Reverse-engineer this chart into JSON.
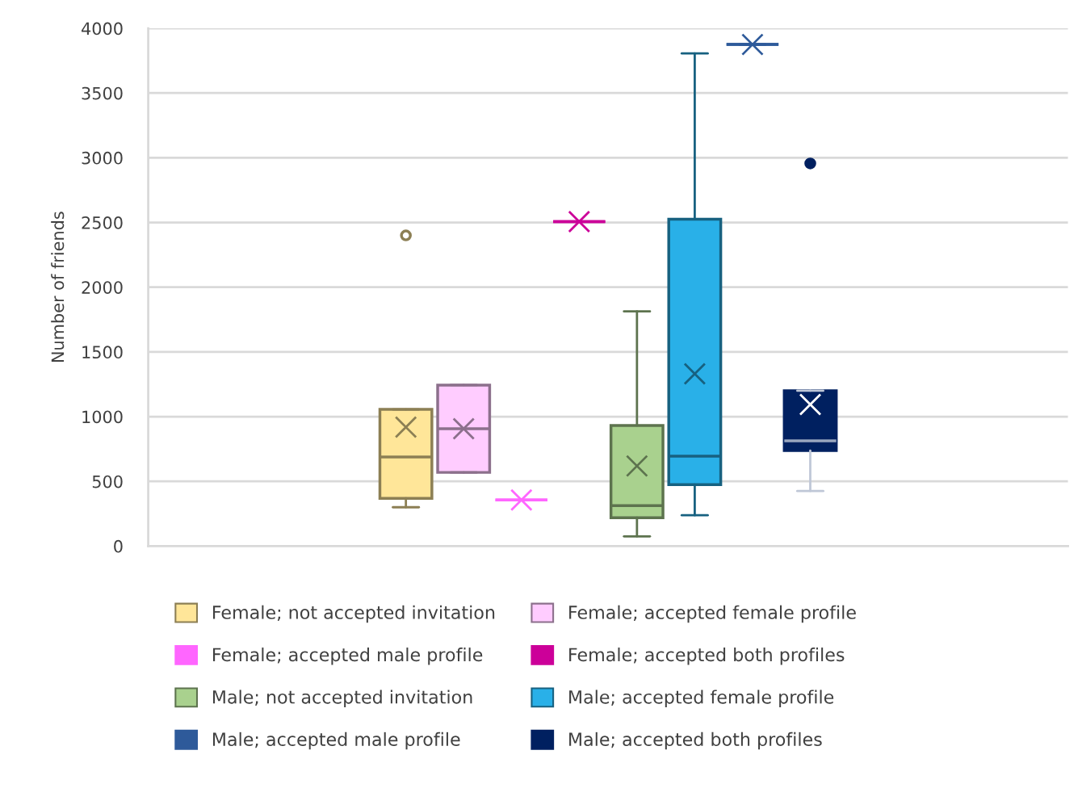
{
  "chart_data": {
    "type": "box",
    "ylabel": "Number of friends",
    "categories": [
      null
    ],
    "ylim": [
      0,
      4000
    ],
    "yticks": [
      0,
      500,
      1000,
      1500,
      2000,
      2500,
      3000,
      3500,
      4000
    ],
    "grid": "y",
    "legend": "bottom",
    "tick_labels": "y",
    "series": [
      {
        "name": "Female; not accepted invitation",
        "color": "#ffe699",
        "boxes": [
          {
            "low": 300,
            "q1": 369,
            "median": 688,
            "q3": 1056,
            "high": 1056,
            "mean": 919,
            "outliers": [
              2400
            ]
          }
        ]
      },
      {
        "name": "Female; accepted female profile",
        "color": "#ffccff",
        "boxes": [
          {
            "low": 569,
            "q1": 569,
            "median": 906,
            "q3": 1244,
            "high": 1244,
            "mean": 906
          }
        ]
      },
      {
        "name": "Female; accepted male profile",
        "color": "#ff66ff",
        "boxes": [
          {
            "low": 356,
            "q1": 356,
            "median": 356,
            "q3": 356,
            "high": 356,
            "mean": 356
          }
        ]
      },
      {
        "name": "Female; accepted both profiles",
        "color": "#cc0099",
        "boxes": [
          {
            "low": 2506,
            "q1": 2506,
            "median": 2506,
            "q3": 2506,
            "high": 2506,
            "mean": 2506
          }
        ]
      },
      {
        "name": "Male; not accepted invitation",
        "color": "#a9d18e",
        "boxes": [
          {
            "low": 75,
            "q1": 219,
            "median": 313,
            "q3": 931,
            "high": 1813,
            "mean": 619
          }
        ]
      },
      {
        "name": "Male; accepted female profile",
        "color": "#29b0e8",
        "boxes": [
          {
            "low": 238,
            "q1": 475,
            "median": 694,
            "q3": 2525,
            "high": 3806,
            "mean": 1331
          }
        ]
      },
      {
        "name": "Male; accepted male profile",
        "color": "#2e5a9a",
        "boxes": [
          {
            "low": 3875,
            "q1": 3875,
            "median": 3875,
            "q3": 3875,
            "high": 3875,
            "mean": 3875
          }
        ]
      },
      {
        "name": "Male; accepted both profiles",
        "color": "#002060",
        "boxes": [
          {
            "low": 425,
            "q1": 738,
            "median": 813,
            "q3": 1200,
            "high": 1200,
            "mean": 1094,
            "outliers": [
              2956
            ]
          }
        ]
      }
    ]
  }
}
